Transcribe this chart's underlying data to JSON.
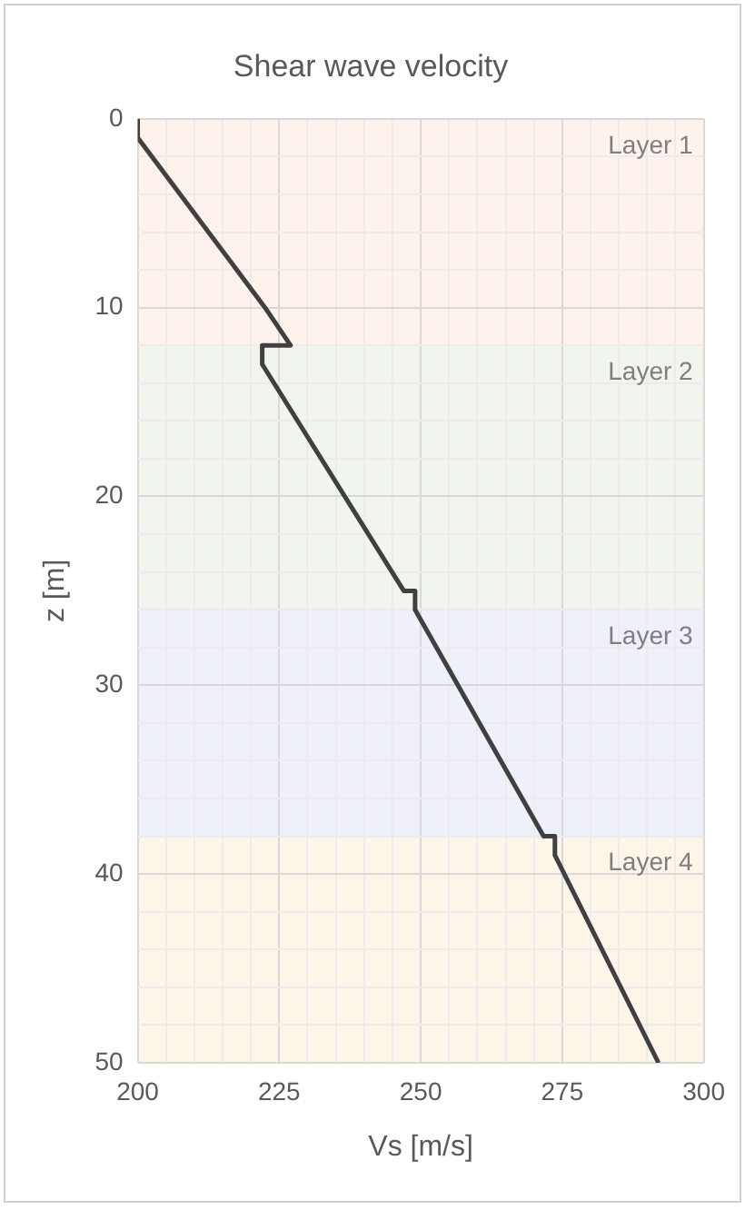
{
  "chart_data": {
    "type": "line",
    "title": "Shear wave velocity",
    "xlabel": "Vs [m/s]",
    "ylabel": "z [m]",
    "x": [
      200,
      200,
      222.5,
      227,
      222,
      222,
      247,
      249,
      249,
      271.7,
      273.7,
      273.7,
      292
    ],
    "series": [
      {
        "color": "#404040",
        "values": [
          0,
          1,
          10,
          12,
          12,
          13,
          25,
          25,
          26,
          38,
          38,
          39,
          50
        ]
      }
    ],
    "xlim": [
      200,
      300
    ],
    "xticks": [
      200,
      {
        "value": 205,
        "label": null
      },
      {
        "value": 210,
        "label": null
      },
      {
        "value": 215,
        "label": null
      },
      {
        "value": 220,
        "label": null
      },
      225,
      {
        "value": 230,
        "label": null
      },
      {
        "value": 235,
        "label": null
      },
      {
        "value": 240,
        "label": null
      },
      {
        "value": 245,
        "label": null
      },
      250,
      {
        "value": 255,
        "label": null
      },
      {
        "value": 260,
        "label": null
      },
      {
        "value": 265,
        "label": null
      },
      {
        "value": 270,
        "label": null
      },
      275,
      {
        "value": 280,
        "label": null
      },
      {
        "value": 285,
        "label": null
      },
      {
        "value": 290,
        "label": null
      },
      {
        "value": 295,
        "label": null
      },
      300
    ],
    "ylim": [
      50,
      0
    ],
    "yticks": [
      0,
      {
        "value": 2,
        "label": null
      },
      {
        "value": 4,
        "label": null
      },
      {
        "value": 6,
        "label": null
      },
      {
        "value": 8,
        "label": null
      },
      10,
      {
        "value": 12,
        "label": null
      },
      {
        "value": 14,
        "label": null
      },
      {
        "value": 16,
        "label": null
      },
      {
        "value": 18,
        "label": null
      },
      20,
      {
        "value": 22,
        "label": null
      },
      {
        "value": 24,
        "label": null
      },
      {
        "value": 26,
        "label": null
      },
      {
        "value": 28,
        "label": null
      },
      30,
      {
        "value": 32,
        "label": null
      },
      {
        "value": 34,
        "label": null
      },
      {
        "value": 36,
        "label": null
      },
      {
        "value": 38,
        "label": null
      },
      40,
      {
        "value": 42,
        "label": null
      },
      {
        "value": 44,
        "label": null
      },
      {
        "value": 46,
        "label": null
      },
      {
        "value": 48,
        "label": null
      },
      50
    ],
    "bands": [
      {
        "axis": "y",
        "from": 0,
        "to": 12,
        "label": "Layer 1",
        "color": "#fdf3ec"
      },
      {
        "axis": "y",
        "from": 12,
        "to": 26,
        "label": "Layer 2",
        "color": "#f0f5ee"
      },
      {
        "axis": "y",
        "from": 26,
        "to": 38,
        "label": "Layer 3",
        "color": "#eef1fa"
      },
      {
        "axis": "y",
        "from": 38,
        "to": 50,
        "label": "Layer 4",
        "color": "#fdf6e8"
      }
    ],
    "grid": true,
    "legend": false,
    "marker": "none",
    "line_style": "solid"
  }
}
